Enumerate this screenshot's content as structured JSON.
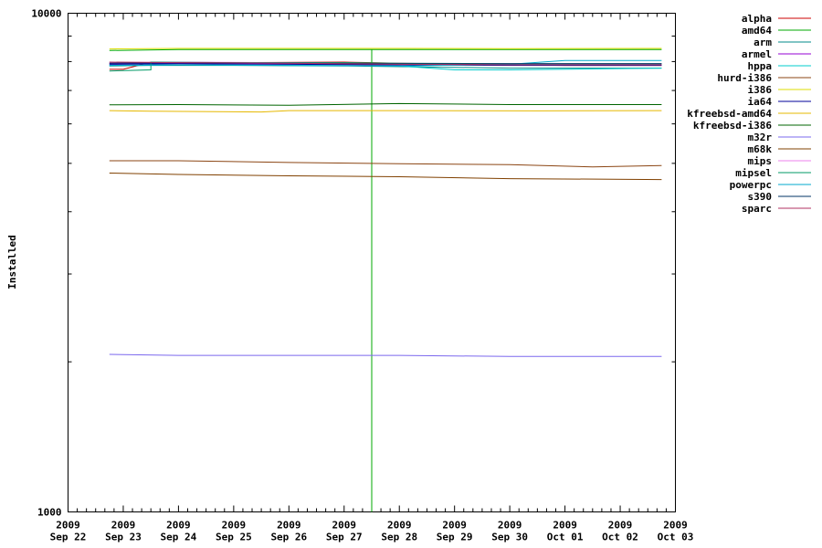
{
  "chart_data": {
    "type": "line",
    "title": "",
    "xlabel": "",
    "ylabel": "Installed",
    "yscale": "log",
    "ylim": [
      1000,
      10000
    ],
    "y_tick_labels": [
      "1000",
      "10000"
    ],
    "xlim": [
      "2009-09-22",
      "2009-10-03"
    ],
    "x_ticks": [
      {
        "date": "2009-09-22",
        "year": "2009",
        "label": "Sep 22"
      },
      {
        "date": "2009-09-23",
        "year": "2009",
        "label": "Sep 23"
      },
      {
        "date": "2009-09-24",
        "year": "2009",
        "label": "Sep 24"
      },
      {
        "date": "2009-09-25",
        "year": "2009",
        "label": "Sep 25"
      },
      {
        "date": "2009-09-26",
        "year": "2009",
        "label": "Sep 26"
      },
      {
        "date": "2009-09-27",
        "year": "2009",
        "label": "Sep 27"
      },
      {
        "date": "2009-09-28",
        "year": "2009",
        "label": "Sep 28"
      },
      {
        "date": "2009-09-29",
        "year": "2009",
        "label": "Sep 29"
      },
      {
        "date": "2009-09-30",
        "year": "2009",
        "label": "Sep 30"
      },
      {
        "date": "2009-10-01",
        "year": "2009",
        "label": "Oct 01"
      },
      {
        "date": "2009-10-02",
        "year": "2009",
        "label": "Oct 02"
      },
      {
        "date": "2009-10-03",
        "year": "2009",
        "label": "Oct 03"
      }
    ],
    "grid": false,
    "legend_position": "outside-right",
    "series": [
      {
        "name": "alpha",
        "color": "#cc0000",
        "x": [
          "2009-09-22 18:00",
          "2009-09-23 00:00",
          "2009-09-23 12:00",
          "2009-09-25 00:00",
          "2009-09-27 00:00",
          "2009-09-28 12:00",
          "2009-09-30 00:00",
          "2009-10-01 00:00",
          "2009-10-02 18:00"
        ],
        "y": [
          7720,
          7720,
          7980,
          7960,
          7980,
          7920,
          7880,
          7860,
          7860
        ]
      },
      {
        "name": "amd64",
        "color": "#00aa00",
        "x": [
          "2009-09-22 18:00",
          "2009-09-24 00:00",
          "2009-09-26 00:00",
          "2009-09-27 12:00",
          "2009-09-27 12:00",
          "2009-09-27 12:00",
          "2009-09-27 12:00",
          "2009-09-27 12:00",
          "2009-09-27 12:00",
          "2009-09-27 12:00",
          "2009-09-27 12:00",
          "2009-09-27 12:00",
          "2009-09-27 12:00",
          "2009-09-27 12:00",
          "2009-09-27 12:00",
          "2009-09-27 12:00",
          "2009-09-27 12:00",
          "2009-09-27 12:00",
          "2009-09-27 12:00",
          "2009-09-27 12:00",
          "2009-09-27 12:00",
          "2009-09-28 00:00",
          "2009-09-30 00:00",
          "2009-10-02 18:00"
        ],
        "y": [
          8420,
          8460,
          8460,
          8460,
          1000,
          1000,
          1000,
          1000,
          1000,
          1000,
          1000,
          1000,
          1000,
          1000,
          1000,
          1000,
          1000,
          1000,
          1000,
          1000,
          8460,
          8460,
          8460,
          8460
        ]
      },
      {
        "name": "arm",
        "color": "#008b8b",
        "x": [
          "2009-09-22 18:00",
          "2009-09-23 12:00",
          "2009-09-25 00:00",
          "2009-09-27 00:00",
          "2009-09-28 12:00",
          "2009-09-30 00:00",
          "2009-10-02 18:00"
        ],
        "y": [
          7840,
          7860,
          7860,
          7840,
          7800,
          7760,
          7760
        ]
      },
      {
        "name": "armel",
        "color": "#9400d3",
        "x": [
          "2009-09-22 18:00",
          "2009-09-24 00:00",
          "2009-09-26 00:00",
          "2009-09-28 00:00",
          "2009-09-30 00:00",
          "2009-10-02 18:00"
        ],
        "y": [
          7920,
          7940,
          7920,
          7900,
          7880,
          7880
        ]
      },
      {
        "name": "hppa",
        "color": "#00cccc",
        "x": [
          "2009-09-22 18:00",
          "2009-09-24 00:00",
          "2009-09-26 00:00",
          "2009-09-28 00:00",
          "2009-09-29 00:00",
          "2009-09-30 00:00",
          "2009-10-02 18:00"
        ],
        "y": [
          7860,
          7880,
          7860,
          7840,
          7700,
          7700,
          7760
        ]
      },
      {
        "name": "hurd-i386",
        "color": "#8b4513",
        "x": [
          "2009-09-22 18:00",
          "2009-09-24 00:00",
          "2009-09-26 00:00",
          "2009-09-28 00:00",
          "2009-09-30 00:00",
          "2009-10-01 12:00",
          "2009-10-02 18:00"
        ],
        "y": [
          5060,
          5060,
          5020,
          4990,
          4970,
          4920,
          4950
        ]
      },
      {
        "name": "i386",
        "color": "#dddd00",
        "x": [
          "2009-09-22 18:00",
          "2009-09-24 00:00",
          "2009-09-26 00:00",
          "2009-09-28 00:00",
          "2009-09-30 00:00",
          "2009-10-02 18:00"
        ],
        "y": [
          8480,
          8500,
          8500,
          8500,
          8490,
          8500
        ]
      },
      {
        "name": "ia64",
        "color": "#000099",
        "x": [
          "2009-09-22 18:00",
          "2009-09-24 00:00",
          "2009-09-26 00:00",
          "2009-09-28 00:00",
          "2009-09-30 00:00",
          "2009-10-02 18:00"
        ],
        "y": [
          7900,
          7920,
          7900,
          7880,
          7860,
          7860
        ]
      },
      {
        "name": "kfreebsd-amd64",
        "color": "#e6b800",
        "x": [
          "2009-09-22 18:00",
          "2009-09-23 12:00",
          "2009-09-25 12:00",
          "2009-09-26 00:00",
          "2009-09-28 00:00",
          "2009-09-30 12:00",
          "2009-10-02 18:00"
        ],
        "y": [
          6380,
          6360,
          6340,
          6380,
          6380,
          6370,
          6380
        ]
      },
      {
        "name": "kfreebsd-i386",
        "color": "#006400",
        "x": [
          "2009-09-22 18:00",
          "2009-09-24 00:00",
          "2009-09-26 00:00",
          "2009-09-28 00:00",
          "2009-09-30 00:00",
          "2009-10-02 18:00"
        ],
        "y": [
          6550,
          6560,
          6540,
          6590,
          6560,
          6560
        ]
      },
      {
        "name": "m32r",
        "color": "#7b68ee",
        "x": [
          "2009-09-22 18:00",
          "2009-09-24 00:00",
          "2009-09-26 00:00",
          "2009-09-28 00:00",
          "2009-09-30 00:00",
          "2009-10-02 18:00"
        ],
        "y": [
          2070,
          2060,
          2060,
          2060,
          2050,
          2050
        ]
      },
      {
        "name": "m68k",
        "color": "#804000",
        "x": [
          "2009-09-22 18:00",
          "2009-09-24 00:00",
          "2009-09-26 00:00",
          "2009-09-28 00:00",
          "2009-09-30 00:00",
          "2009-10-02 18:00"
        ],
        "y": [
          4780,
          4750,
          4720,
          4700,
          4660,
          4640
        ]
      },
      {
        "name": "mips",
        "color": "#ee82ee",
        "x": [
          "2009-09-22 18:00",
          "2009-09-24 00:00",
          "2009-09-26 00:00",
          "2009-09-28 00:00",
          "2009-09-30 00:00",
          "2009-10-02 18:00"
        ],
        "y": [
          7960,
          7980,
          7960,
          7940,
          7920,
          7920
        ]
      },
      {
        "name": "mipsel",
        "color": "#009966",
        "x": [
          "2009-09-22 18:00",
          "2009-09-23 12:00",
          "2009-09-23 12:00",
          "2009-09-25 00:00",
          "2009-09-27 00:00",
          "2009-09-28 00:00",
          "2009-09-30 00:00",
          "2009-10-02 18:00"
        ],
        "y": [
          7660,
          7700,
          7980,
          7960,
          7960,
          7940,
          7920,
          7920
        ]
      },
      {
        "name": "powerpc",
        "color": "#00aacc",
        "x": [
          "2009-09-22 18:00",
          "2009-09-24 00:00",
          "2009-09-26 00:00",
          "2009-09-28 00:00",
          "2009-09-30 00:00",
          "2009-10-01 00:00",
          "2009-10-02 18:00"
        ],
        "y": [
          7860,
          7880,
          7860,
          7840,
          7900,
          8040,
          8040
        ]
      },
      {
        "name": "s390",
        "color": "#003366",
        "x": [
          "2009-09-22 18:00",
          "2009-09-24 00:00",
          "2009-09-26 00:00",
          "2009-09-28 00:00",
          "2009-09-30 00:00",
          "2009-10-02 18:00"
        ],
        "y": [
          7940,
          7960,
          7940,
          7920,
          7920,
          7920
        ]
      },
      {
        "name": "sparc",
        "color": "#b03060",
        "x": [
          "2009-09-22 18:00",
          "2009-09-24 00:00",
          "2009-09-26 00:00",
          "2009-09-28 00:00",
          "2009-09-30 00:00",
          "2009-10-02 18:00"
        ],
        "y": [
          7980,
          7960,
          7940,
          7900,
          7880,
          7880
        ]
      }
    ]
  }
}
